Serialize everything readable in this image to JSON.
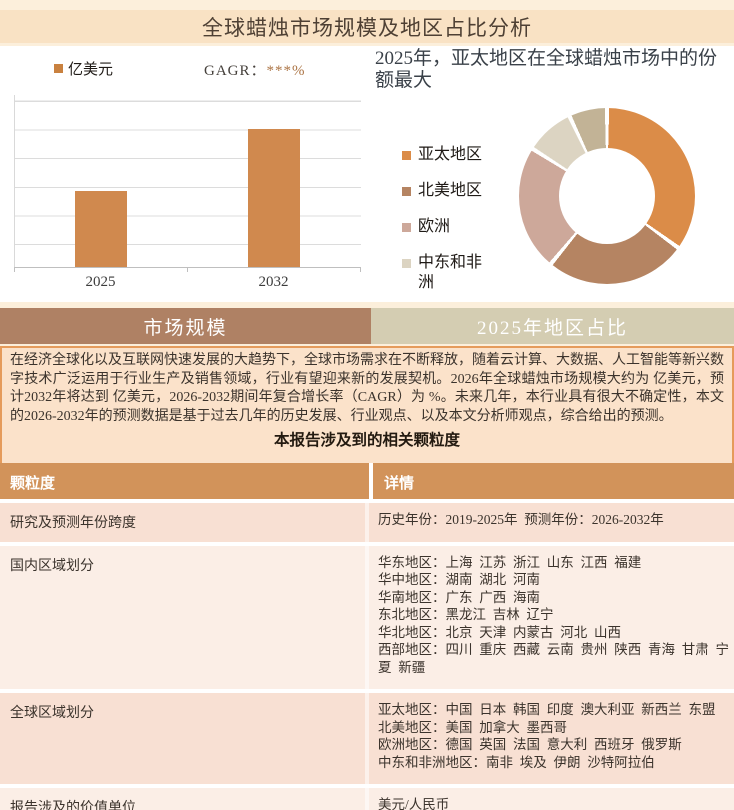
{
  "page": {
    "title": "全球蜡烛市场规模及地区占比分析"
  },
  "tabs": {
    "left": "市场规模",
    "right": "2025年地区占比"
  },
  "chart_data": [
    {
      "type": "bar",
      "series_name": "亿美元",
      "cagr_label": "GAGR：",
      "cagr_value": "***%",
      "categories": [
        "2025",
        "2032"
      ],
      "values": [
        55,
        100
      ],
      "values_relative": true,
      "values_masked": true,
      "bar_color": "#d0894e",
      "gridlines": true,
      "ylabel": ""
    },
    {
      "type": "donut",
      "title": "2025年，亚太地区在全球蜡烛市场中的份额最大",
      "labels": [
        "亚太地区",
        "北美地区",
        "欧洲",
        "中东和非洲",
        ""
      ],
      "values": [
        35,
        26,
        23,
        9,
        7
      ],
      "values_estimated": true,
      "colors": [
        "#db8c48",
        "#b58462",
        "#cda89a",
        "#dcd4c2",
        "#c2b396"
      ],
      "legend_position": "left"
    }
  ],
  "intro": {
    "text": "在经济全球化以及互联网快速发展的大趋势下，全球市场需求在不断释放，随着云计算、大数据、人工智能等新兴数字技术广泛运用于行业生产及销售领域，行业有望迎来新的发展契机。2026年全球蜡烛市场规模大约为 亿美元，预计2032年将达到 亿美元，2026-2032期间年复合增长率（CAGR）为 %。未来几年，本行业具有很大不确定性，本文的2026-2032年的预测数据是基于过去几年的历史发展、行业观点、以及本文分析师观点，综合给出的预测。",
    "heading": "本报告涉及到的相关颗粒度"
  },
  "table": {
    "headers": [
      "颗粒度",
      "详情"
    ],
    "rows": [
      {
        "label": "研究及预测年份跨度",
        "details": [
          "历史年份：2019-2025年  预测年份：2026-2032年"
        ]
      },
      {
        "label": "国内区域划分",
        "details": [
          "华东地区：上海  江苏  浙江  山东  江西  福建",
          "华中地区：湖南  湖北  河南",
          "华南地区：广东  广西  海南",
          "东北地区：黑龙江  吉林  辽宁",
          "华北地区：北京  天津  内蒙古  河北  山西",
          "西部地区：四川  重庆  西藏  云南  贵州  陕西  青海  甘肃  宁夏  新疆"
        ]
      },
      {
        "label": "全球区域划分",
        "details": [
          "亚太地区：中国  日本  韩国  印度  澳大利亚  新西兰  东盟",
          "北美地区：美国  加拿大  墨西哥",
          "欧洲地区：德国  英国  法国  意大利  西班牙  俄罗斯",
          "中东和非洲地区：南非  埃及  伊朗  沙特阿拉伯"
        ]
      },
      {
        "label": "报告涉及的价值单位",
        "details": [
          "美元/人民币"
        ]
      }
    ]
  },
  "colors": {
    "page_background": "#fcefdb",
    "title_bar": "#f9e2c4",
    "tab_left": "#af8164",
    "tab_right": "#d4cdb2",
    "intro_background": "#fbe2ca",
    "intro_border": "#e59b5b",
    "table_header": "#d2935a",
    "row_odd": "#f8e0d3",
    "row_even": "#fbeee6",
    "bar": "#d0894e"
  }
}
